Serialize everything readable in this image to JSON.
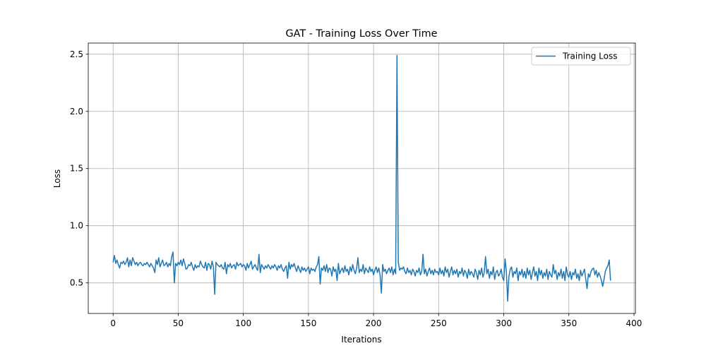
{
  "chart_data": {
    "type": "line",
    "title": "GAT - Training Loss Over Time",
    "xlabel": "Iterations",
    "ylabel": "Loss",
    "x": [
      0,
      1,
      2,
      3,
      4,
      5,
      6,
      7,
      8,
      9,
      10,
      11,
      12,
      13,
      14,
      15,
      16,
      17,
      18,
      19,
      20,
      21,
      22,
      23,
      24,
      25,
      26,
      27,
      28,
      29,
      30,
      31,
      32,
      33,
      34,
      35,
      36,
      37,
      38,
      39,
      40,
      41,
      42,
      43,
      44,
      45,
      46,
      47,
      48,
      49,
      50,
      51,
      52,
      53,
      54,
      55,
      56,
      57,
      58,
      59,
      60,
      61,
      62,
      63,
      64,
      65,
      66,
      67,
      68,
      69,
      70,
      71,
      72,
      73,
      74,
      75,
      76,
      77,
      78,
      79,
      80,
      81,
      82,
      83,
      84,
      85,
      86,
      87,
      88,
      89,
      90,
      91,
      92,
      93,
      94,
      95,
      96,
      97,
      98,
      99,
      100,
      101,
      102,
      103,
      104,
      105,
      106,
      107,
      108,
      109,
      110,
      111,
      112,
      113,
      114,
      115,
      116,
      117,
      118,
      119,
      120,
      121,
      122,
      123,
      124,
      125,
      126,
      127,
      128,
      129,
      130,
      131,
      132,
      133,
      134,
      135,
      136,
      137,
      138,
      139,
      140,
      141,
      142,
      143,
      144,
      145,
      146,
      147,
      148,
      149,
      150,
      151,
      152,
      153,
      154,
      155,
      156,
      157,
      158,
      159,
      160,
      161,
      162,
      163,
      164,
      165,
      166,
      167,
      168,
      169,
      170,
      171,
      172,
      173,
      174,
      175,
      176,
      177,
      178,
      179,
      180,
      181,
      182,
      183,
      184,
      185,
      186,
      187,
      188,
      189,
      190,
      191,
      192,
      193,
      194,
      195,
      196,
      197,
      198,
      199,
      200,
      201,
      202,
      203,
      204,
      205,
      206,
      207,
      208,
      209,
      210,
      211,
      212,
      213,
      214,
      215,
      216,
      217,
      218,
      219,
      220,
      221,
      222,
      223,
      224,
      225,
      226,
      227,
      228,
      229,
      230,
      231,
      232,
      233,
      234,
      235,
      236,
      237,
      238,
      239,
      240,
      241,
      242,
      243,
      244,
      245,
      246,
      247,
      248,
      249,
      250,
      251,
      252,
      253,
      254,
      255,
      256,
      257,
      258,
      259,
      260,
      261,
      262,
      263,
      264,
      265,
      266,
      267,
      268,
      269,
      270,
      271,
      272,
      273,
      274,
      275,
      276,
      277,
      278,
      279,
      280,
      281,
      282,
      283,
      284,
      285,
      286,
      287,
      288,
      289,
      290,
      291,
      292,
      293,
      294,
      295,
      296,
      297,
      298,
      299,
      300,
      301,
      302,
      303,
      304,
      305,
      306,
      307,
      308,
      309,
      310,
      311,
      312,
      313,
      314,
      315,
      316,
      317,
      318,
      319,
      320,
      321,
      322,
      323,
      324,
      325,
      326,
      327,
      328,
      329,
      330,
      331,
      332,
      333,
      334,
      335,
      336,
      337,
      338,
      339,
      340,
      341,
      342,
      343,
      344,
      345,
      346,
      347,
      348,
      349,
      350,
      351,
      352,
      353,
      354,
      355,
      356,
      357,
      358,
      359,
      360,
      361,
      362,
      363,
      364,
      365,
      366,
      367,
      368,
      369,
      370,
      371,
      372,
      373,
      374,
      375,
      376,
      377,
      378,
      379,
      380,
      381,
      382
    ],
    "series": [
      {
        "name": "Training Loss",
        "color": "#1f77b4",
        "values": [
          0.68,
          0.74,
          0.67,
          0.7,
          0.66,
          0.63,
          0.68,
          0.67,
          0.69,
          0.66,
          0.68,
          0.72,
          0.64,
          0.7,
          0.65,
          0.72,
          0.69,
          0.66,
          0.68,
          0.65,
          0.67,
          0.68,
          0.66,
          0.65,
          0.67,
          0.66,
          0.68,
          0.66,
          0.64,
          0.67,
          0.65,
          0.63,
          0.59,
          0.7,
          0.66,
          0.72,
          0.64,
          0.67,
          0.7,
          0.65,
          0.66,
          0.68,
          0.64,
          0.67,
          0.65,
          0.73,
          0.77,
          0.5,
          0.67,
          0.65,
          0.68,
          0.66,
          0.7,
          0.65,
          0.71,
          0.67,
          0.62,
          0.63,
          0.66,
          0.65,
          0.68,
          0.64,
          0.61,
          0.66,
          0.63,
          0.65,
          0.64,
          0.69,
          0.66,
          0.64,
          0.63,
          0.68,
          0.61,
          0.67,
          0.66,
          0.62,
          0.69,
          0.64,
          0.4,
          0.68,
          0.66,
          0.65,
          0.64,
          0.66,
          0.63,
          0.62,
          0.68,
          0.58,
          0.66,
          0.64,
          0.67,
          0.63,
          0.65,
          0.66,
          0.62,
          0.68,
          0.65,
          0.66,
          0.67,
          0.64,
          0.66,
          0.65,
          0.61,
          0.67,
          0.63,
          0.66,
          0.69,
          0.62,
          0.64,
          0.66,
          0.63,
          0.61,
          0.75,
          0.59,
          0.66,
          0.64,
          0.62,
          0.65,
          0.63,
          0.66,
          0.64,
          0.62,
          0.65,
          0.63,
          0.66,
          0.64,
          0.61,
          0.65,
          0.63,
          0.66,
          0.62,
          0.6,
          0.63,
          0.65,
          0.54,
          0.68,
          0.62,
          0.66,
          0.64,
          0.67,
          0.63,
          0.6,
          0.65,
          0.62,
          0.59,
          0.64,
          0.61,
          0.63,
          0.6,
          0.62,
          0.64,
          0.58,
          0.63,
          0.61,
          0.62,
          0.6,
          0.64,
          0.66,
          0.73,
          0.49,
          0.63,
          0.61,
          0.65,
          0.6,
          0.66,
          0.59,
          0.63,
          0.62,
          0.56,
          0.64,
          0.6,
          0.62,
          0.52,
          0.67,
          0.58,
          0.61,
          0.63,
          0.59,
          0.65,
          0.6,
          0.62,
          0.57,
          0.64,
          0.6,
          0.66,
          0.61,
          0.58,
          0.63,
          0.72,
          0.59,
          0.62,
          0.6,
          0.66,
          0.58,
          0.63,
          0.61,
          0.59,
          0.64,
          0.6,
          0.62,
          0.57,
          0.61,
          0.64,
          0.59,
          0.63,
          0.57,
          0.41,
          0.66,
          0.6,
          0.62,
          0.58,
          0.61,
          0.63,
          0.59,
          0.64,
          0.57,
          0.62,
          0.58,
          2.49,
          0.68,
          0.61,
          0.63,
          0.62,
          0.64,
          0.6,
          0.58,
          0.63,
          0.59,
          0.61,
          0.57,
          0.62,
          0.6,
          0.56,
          0.61,
          0.59,
          0.63,
          0.57,
          0.6,
          0.75,
          0.58,
          0.62,
          0.56,
          0.6,
          0.63,
          0.58,
          0.61,
          0.57,
          0.62,
          0.59,
          0.6,
          0.57,
          0.63,
          0.58,
          0.61,
          0.56,
          0.64,
          0.59,
          0.62,
          0.55,
          0.6,
          0.64,
          0.57,
          0.61,
          0.58,
          0.62,
          0.55,
          0.6,
          0.58,
          0.63,
          0.56,
          0.61,
          0.59,
          0.54,
          0.62,
          0.57,
          0.6,
          0.58,
          0.55,
          0.62,
          0.59,
          0.53,
          0.61,
          0.57,
          0.63,
          0.55,
          0.59,
          0.73,
          0.58,
          0.62,
          0.54,
          0.6,
          0.57,
          0.64,
          0.53,
          0.59,
          0.61,
          0.56,
          0.58,
          0.62,
          0.55,
          0.52,
          0.71,
          0.6,
          0.34,
          0.56,
          0.62,
          0.64,
          0.55,
          0.6,
          0.58,
          0.63,
          0.52,
          0.6,
          0.57,
          0.62,
          0.55,
          0.6,
          0.54,
          0.63,
          0.57,
          0.61,
          0.53,
          0.59,
          0.64,
          0.56,
          0.6,
          0.52,
          0.63,
          0.57,
          0.61,
          0.54,
          0.59,
          0.56,
          0.62,
          0.53,
          0.6,
          0.57,
          0.55,
          0.66,
          0.58,
          0.61,
          0.53,
          0.59,
          0.56,
          0.62,
          0.54,
          0.6,
          0.52,
          0.64,
          0.57,
          0.55,
          0.6,
          0.53,
          0.59,
          0.57,
          0.62,
          0.54,
          0.58,
          0.52,
          0.61,
          0.56,
          0.59,
          0.62,
          0.53,
          0.45,
          0.58,
          0.55,
          0.6,
          0.62,
          0.63,
          0.57,
          0.61,
          0.55,
          0.59,
          0.56,
          0.52,
          0.47,
          0.53,
          0.6,
          0.63,
          0.65,
          0.7,
          0.52
        ]
      }
    ],
    "xlim": [
      -19.1,
      401.1
    ],
    "xticks": [
      0,
      50,
      100,
      150,
      200,
      250,
      300,
      350,
      400
    ],
    "ylim": [
      0.2325,
      2.5975
    ],
    "yticks": [
      0.5,
      {
        "value": 1,
        "label": "1.0"
      },
      1.5,
      {
        "value": 2,
        "label": "2.0"
      },
      2.5
    ],
    "grid": true,
    "legend": "upper right"
  }
}
